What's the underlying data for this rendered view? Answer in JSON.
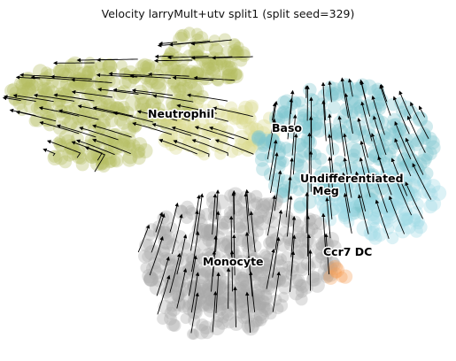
{
  "chart_data": {
    "type": "scatter",
    "title": "Velocity larryMult+utv split1 (split seed=329)",
    "xlabel": "",
    "ylabel": "",
    "grid": false,
    "axes_visible": false,
    "overlay": "velocity streamlines with arrowheads",
    "clusters": [
      {
        "label": "Neutrophil",
        "color": "#b5bd61"
      },
      {
        "label": "Baso",
        "color": "#dbdb8d"
      },
      {
        "label": "Undifferentiated",
        "color": "#7fc7cf"
      },
      {
        "label": "Meg",
        "color": "#9edae5"
      },
      {
        "label": "Monocyte",
        "color": "#a8a8a8"
      },
      {
        "label": "Ccr7 DC",
        "color": "#f6a05a"
      }
    ]
  }
}
